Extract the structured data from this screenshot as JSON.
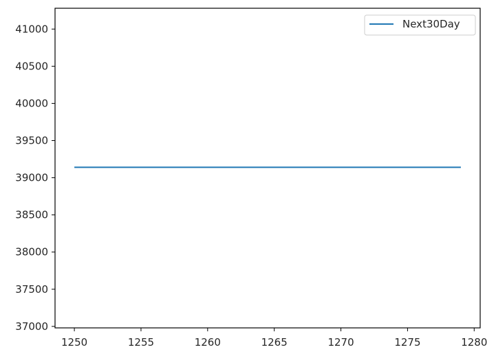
{
  "chart_data": {
    "type": "line",
    "title": "",
    "xlabel": "",
    "ylabel": "",
    "x": [
      1250,
      1279
    ],
    "series": [
      {
        "name": "Next30Day",
        "values": [
          39140,
          39140
        ],
        "color": "#1f77b4"
      }
    ],
    "xlim": [
      1248.55,
      1280.45
    ],
    "ylim": [
      36980,
      41280
    ],
    "xticks": [
      1250,
      1255,
      1260,
      1265,
      1270,
      1275,
      1280
    ],
    "yticks": [
      37000,
      37500,
      38000,
      38500,
      39000,
      39500,
      40000,
      40500,
      41000
    ],
    "grid": false,
    "legend_position": "upper right"
  },
  "colors": {
    "axis": "#000000",
    "text": "#262626",
    "background": "#ffffff",
    "legend_border": "#cccccc"
  }
}
